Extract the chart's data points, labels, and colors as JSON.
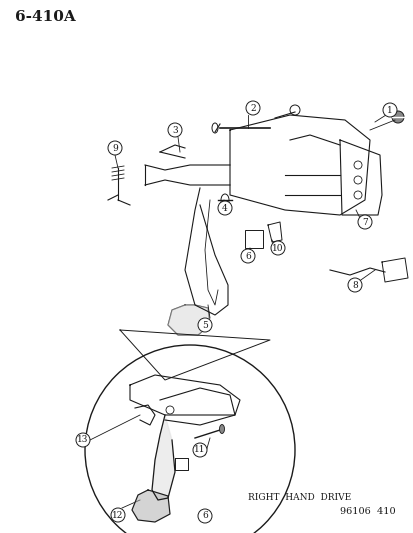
{
  "bg_color": "#ffffff",
  "title_text": "6-410A",
  "title_fontsize": 11,
  "footer_text": "96106  410",
  "footer_fontsize": 7,
  "rh_drive_text": "RIGHT  HAND  DRIVE",
  "rh_drive_fontsize": 6.5,
  "line_color": "#1a1a1a",
  "label_fontsize": 6.5,
  "fig_width": 4.14,
  "fig_height": 5.33,
  "dpi": 100
}
